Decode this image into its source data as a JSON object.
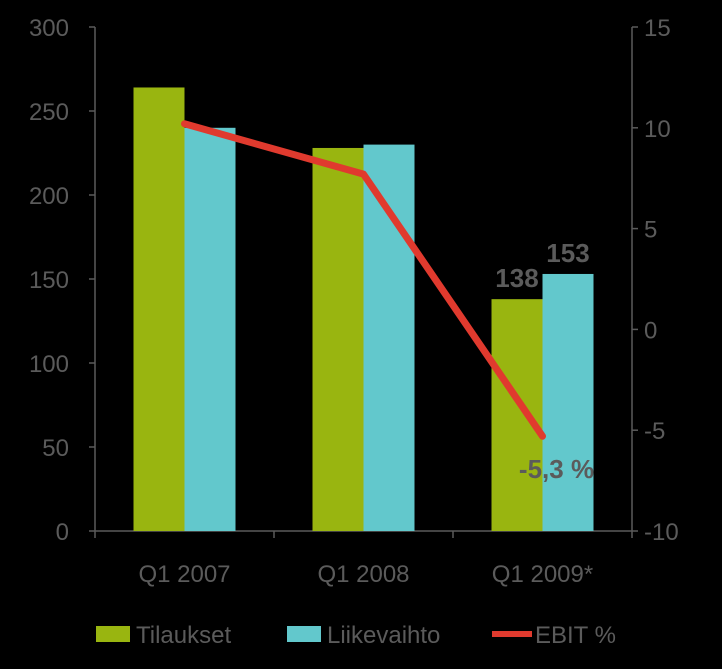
{
  "chart_data": {
    "type": "bar",
    "categories": [
      "Q1 2007",
      "Q1 2008",
      "Q1 2009*"
    ],
    "series": [
      {
        "name": "Tilaukset",
        "axis": "left",
        "kind": "bar",
        "color": "#99b510",
        "values": [
          264,
          228,
          138
        ]
      },
      {
        "name": "Liikevaihto",
        "axis": "left",
        "kind": "bar",
        "color": "#62c8cc",
        "values": [
          240,
          230,
          153
        ]
      },
      {
        "name": "EBIT %",
        "axis": "right",
        "kind": "line",
        "color": "#e03a2e",
        "values": [
          10.2,
          7.7,
          -5.3
        ]
      }
    ],
    "y_left": {
      "min": 0,
      "max": 300,
      "ticks": [
        "0",
        "50",
        "100",
        "150",
        "200",
        "250",
        "300"
      ]
    },
    "y_right": {
      "min": -10,
      "max": 15,
      "ticks": [
        "-10",
        "-5",
        "0",
        "5",
        "10",
        "15"
      ]
    },
    "data_labels": [
      {
        "text": "138",
        "category": "Q1 2009*",
        "series": "Tilaukset"
      },
      {
        "text": "153",
        "category": "Q1 2009*",
        "series": "Liikevaihto"
      },
      {
        "text": "-5,3 %",
        "category": "Q1 2009*",
        "series": "EBIT %"
      }
    ],
    "grid": false,
    "legend": "bottom",
    "axis_color": "#5b5b5b",
    "background": "#000000"
  }
}
